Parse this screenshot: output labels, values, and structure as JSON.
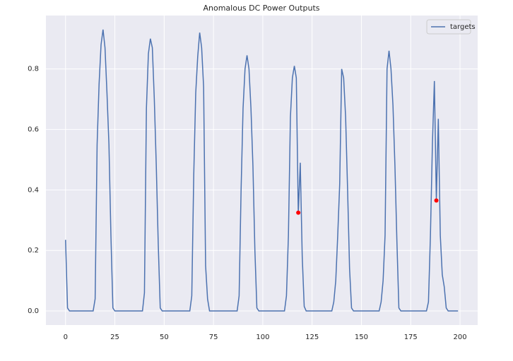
{
  "chart_data": {
    "type": "line",
    "title": "Anomalous DC Power Outputs",
    "x": [
      0,
      1,
      2,
      3,
      4,
      5,
      6,
      7,
      8,
      9,
      10,
      11,
      12,
      13,
      14,
      15,
      16,
      17,
      18,
      19,
      20,
      21,
      22,
      23,
      24,
      25,
      26,
      27,
      28,
      29,
      30,
      31,
      32,
      33,
      34,
      35,
      36,
      37,
      38,
      39,
      40,
      41,
      42,
      43,
      44,
      45,
      46,
      47,
      48,
      49,
      50,
      51,
      52,
      53,
      54,
      55,
      56,
      57,
      58,
      59,
      60,
      61,
      62,
      63,
      64,
      65,
      66,
      67,
      68,
      69,
      70,
      71,
      72,
      73,
      74,
      75,
      76,
      77,
      78,
      79,
      80,
      81,
      82,
      83,
      84,
      85,
      86,
      87,
      88,
      89,
      90,
      91,
      92,
      93,
      94,
      95,
      96,
      97,
      98,
      99,
      100,
      101,
      102,
      103,
      104,
      105,
      106,
      107,
      108,
      109,
      110,
      111,
      112,
      113,
      114,
      115,
      116,
      117,
      118,
      119,
      120,
      121,
      122,
      123,
      124,
      125,
      126,
      127,
      128,
      129,
      130,
      131,
      132,
      133,
      134,
      135,
      136,
      137,
      138,
      139,
      140,
      141,
      142,
      143,
      144,
      145,
      146,
      147,
      148,
      149,
      150,
      151,
      152,
      153,
      154,
      155,
      156,
      157,
      158,
      159,
      160,
      161,
      162,
      163,
      164,
      165,
      166,
      167,
      168,
      169,
      170,
      171,
      172,
      173,
      174,
      175,
      176,
      177,
      178,
      179,
      180,
      181,
      182,
      183,
      184,
      185,
      186,
      187,
      188,
      189,
      190,
      191,
      192,
      193,
      194,
      195,
      196,
      197,
      198,
      199
    ],
    "series": [
      {
        "name": "targets",
        "color": "#4c72b0",
        "values": [
          0.235,
          0.01,
          0,
          0,
          0,
          0,
          0,
          0,
          0,
          0,
          0,
          0,
          0,
          0,
          0,
          0.04,
          0.55,
          0.75,
          0.88,
          0.93,
          0.87,
          0.72,
          0.55,
          0.25,
          0.01,
          0,
          0,
          0,
          0,
          0,
          0,
          0,
          0,
          0,
          0,
          0,
          0,
          0,
          0,
          0,
          0.06,
          0.67,
          0.85,
          0.9,
          0.87,
          0.7,
          0.48,
          0.22,
          0.01,
          0,
          0,
          0,
          0,
          0,
          0,
          0,
          0,
          0,
          0,
          0,
          0,
          0,
          0,
          0,
          0.05,
          0.45,
          0.72,
          0.84,
          0.92,
          0.87,
          0.74,
          0.15,
          0.04,
          0,
          0,
          0,
          0,
          0,
          0,
          0,
          0,
          0,
          0,
          0,
          0,
          0,
          0,
          0,
          0.05,
          0.4,
          0.67,
          0.8,
          0.845,
          0.8,
          0.67,
          0.48,
          0.2,
          0.01,
          0,
          0,
          0,
          0,
          0,
          0,
          0,
          0,
          0,
          0,
          0,
          0,
          0,
          0,
          0.05,
          0.25,
          0.64,
          0.77,
          0.81,
          0.77,
          0.32,
          0.49,
          0.18,
          0.015,
          0,
          0,
          0,
          0,
          0,
          0,
          0,
          0,
          0,
          0,
          0,
          0,
          0,
          0,
          0.03,
          0.1,
          0.25,
          0.42,
          0.8,
          0.77,
          0.64,
          0.4,
          0.14,
          0.01,
          0,
          0,
          0,
          0,
          0,
          0,
          0,
          0,
          0,
          0,
          0,
          0,
          0,
          0,
          0.03,
          0.1,
          0.25,
          0.8,
          0.86,
          0.8,
          0.68,
          0.48,
          0.23,
          0.01,
          0,
          0,
          0,
          0,
          0,
          0,
          0,
          0,
          0,
          0,
          0,
          0,
          0,
          0,
          0.03,
          0.25,
          0.55,
          0.76,
          0.365,
          0.635,
          0.25,
          0.12,
          0.08,
          0.01,
          0,
          0,
          0,
          0,
          0,
          0
        ]
      }
    ],
    "markers": {
      "x": [
        118,
        188
      ],
      "y": [
        0.325,
        0.365
      ],
      "color": "#ff0000"
    },
    "xlim": [
      -9.95,
      208.95
    ],
    "ylim": [
      -0.0465,
      0.9765
    ],
    "xticks": [
      0,
      25,
      50,
      75,
      100,
      125,
      150,
      175,
      200
    ],
    "yticks": [
      {
        "value": 0,
        "label": "0.0"
      },
      0.2,
      0.4,
      0.6,
      0.8
    ],
    "grid": true,
    "legend": "upper right"
  }
}
